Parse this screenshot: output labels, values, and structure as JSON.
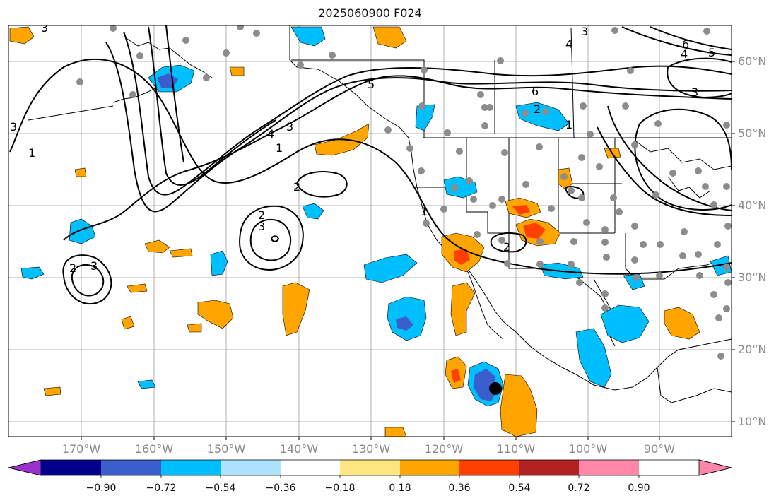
{
  "title": "2025060900 F024",
  "lat_labels": [
    "60°N",
    "50°N",
    "40°N",
    "30°N",
    "20°N",
    "10°N"
  ],
  "lon_labels": [
    "170°W",
    "160°W",
    "150°W",
    "140°W",
    "130°W",
    "120°W",
    "110°W",
    "100°W",
    "90°W"
  ],
  "colorbar": {
    "ticks": [
      "−0.90",
      "−0.72",
      "−0.54",
      "−0.36",
      "−0.18",
      "0.18",
      "0.36",
      "0.54",
      "0.72",
      "0.90"
    ],
    "colors": [
      "#9932cc",
      "#00008b",
      "#3a5fcd",
      "#00bfff",
      "#aee3ff",
      "#ffffff",
      "#ffe680",
      "#ffa500",
      "#ff4000",
      "#b22222",
      "#ff88aa"
    ]
  },
  "fill_colors": {
    "light_blue": "#00bfff",
    "medium_blue": "#3a5fcd",
    "orange": "#ffa500",
    "red_orange": "#ff4000",
    "station_gray": "#8c8c8c"
  },
  "contour_labels": [
    "1",
    "2",
    "3",
    "4",
    "5",
    "6"
  ],
  "marker": "black dot"
}
